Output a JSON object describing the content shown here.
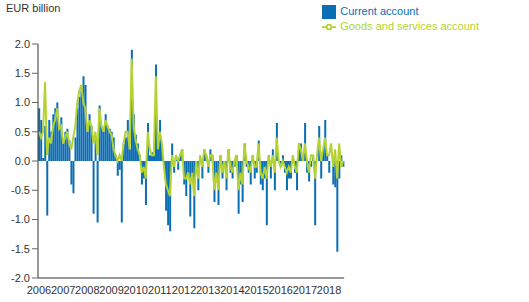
{
  "chart_data": {
    "type": "bar",
    "y_label": "EUR billion",
    "categories": [
      "2006",
      null,
      null,
      null,
      null,
      null,
      null,
      null,
      null,
      null,
      null,
      null,
      "2007",
      null,
      null,
      null,
      null,
      null,
      null,
      null,
      null,
      null,
      null,
      null,
      "2008",
      null,
      null,
      null,
      null,
      null,
      null,
      null,
      null,
      null,
      null,
      null,
      "2009",
      null,
      null,
      null,
      null,
      null,
      null,
      null,
      null,
      null,
      null,
      null,
      "2010",
      null,
      null,
      null,
      null,
      null,
      null,
      null,
      null,
      null,
      null,
      null,
      "2011",
      null,
      null,
      null,
      null,
      null,
      null,
      null,
      null,
      null,
      null,
      null,
      "2012",
      null,
      null,
      null,
      null,
      null,
      null,
      null,
      null,
      null,
      null,
      null,
      "2013",
      null,
      null,
      null,
      null,
      null,
      null,
      null,
      null,
      null,
      null,
      null,
      "2014",
      null,
      null,
      null,
      null,
      null,
      null,
      null,
      null,
      null,
      null,
      null,
      "2015",
      null,
      null,
      null,
      null,
      null,
      null,
      null,
      null,
      null,
      null,
      null,
      "2016",
      null,
      null,
      null,
      null,
      null,
      null,
      null,
      null,
      null,
      null,
      null,
      "2017",
      null,
      null,
      null,
      null,
      null,
      null,
      null,
      null,
      null,
      null,
      null,
      "2018",
      null,
      null,
      null,
      null,
      null,
      null,
      null
    ],
    "series": [
      {
        "name": "Current account",
        "type": "bar",
        "color": "#0a6eb4",
        "values": [
          0.9,
          0.7,
          0.05,
          0.6,
          -0.93,
          0.7,
          0.5,
          0.8,
          0.9,
          1.0,
          0.6,
          0.75,
          0.3,
          0.5,
          0.55,
          0.35,
          -0.4,
          -0.55,
          0.4,
          0.9,
          1.1,
          1.2,
          1.45,
          1.3,
          0.5,
          0.8,
          0.6,
          -0.9,
          0.4,
          -1.05,
          0.95,
          0.6,
          0.5,
          0.8,
          0.6,
          0.55,
          0.5,
          0.4,
          0.1,
          -0.25,
          -0.15,
          -1.05,
          0.3,
          0.4,
          0.7,
          0.2,
          1.9,
          0.8,
          0.45,
          0.3,
          0.1,
          -0.4,
          -0.3,
          -0.75,
          0.65,
          0.1,
          0.15,
          0.1,
          1.65,
          0.25,
          0.7,
          0.3,
          -0.1,
          -0.85,
          -1.1,
          -1.2,
          0.3,
          -0.2,
          0.05,
          -0.15,
          0.1,
          0.2,
          -0.4,
          -0.6,
          -0.2,
          -0.95,
          -0.3,
          -1.15,
          -0.1,
          -0.5,
          0.0,
          -0.3,
          0.2,
          0.1,
          -0.2,
          0.2,
          0.1,
          -0.7,
          -0.3,
          -0.75,
          0.1,
          -0.3,
          -0.1,
          -0.5,
          0.2,
          -0.2,
          -0.3,
          -0.1,
          0.1,
          -0.9,
          -0.4,
          -0.7,
          0.3,
          -0.1,
          -0.2,
          -0.4,
          0.1,
          -0.3,
          -0.2,
          0.35,
          -0.4,
          -0.5,
          -0.3,
          -1.1,
          0.1,
          -0.3,
          0.2,
          -0.5,
          0.65,
          0.0,
          -0.1,
          0.1,
          -0.2,
          -0.5,
          -0.3,
          -0.3,
          0.1,
          -0.2,
          -0.5,
          0.3,
          0.3,
          0.0,
          0.65,
          -0.2,
          -0.35,
          -0.1,
          0.1,
          -1.1,
          0.0,
          0.6,
          -0.3,
          0.2,
          0.7,
          0.1,
          -0.2,
          0.0,
          -0.4,
          -0.45,
          -1.55,
          -0.3,
          0.1,
          -0.1
        ]
      },
      {
        "name": "Goods and services account",
        "type": "line",
        "color": "#b4d232",
        "values": [
          0.5,
          0.4,
          0.5,
          1.35,
          0.1,
          0.4,
          0.3,
          0.6,
          0.7,
          0.9,
          0.55,
          0.6,
          0.3,
          0.4,
          0.5,
          0.3,
          0.2,
          0.4,
          0.6,
          1.0,
          1.2,
          1.3,
          1.0,
          0.9,
          0.5,
          0.7,
          0.6,
          0.3,
          0.5,
          0.1,
          0.9,
          0.6,
          0.5,
          0.7,
          0.6,
          0.5,
          0.45,
          0.2,
          0.1,
          0.0,
          0.1,
          0.0,
          0.3,
          0.5,
          0.5,
          0.2,
          1.75,
          0.6,
          0.35,
          0.2,
          0.1,
          -0.2,
          -0.1,
          -0.3,
          0.5,
          0.2,
          0.1,
          0.1,
          1.45,
          0.2,
          0.5,
          0.3,
          -0.1,
          -0.4,
          -0.5,
          -0.6,
          0.1,
          -0.1,
          0.1,
          0.0,
          0.1,
          0.2,
          -0.3,
          -0.3,
          -0.2,
          -0.4,
          -0.2,
          -0.6,
          0.0,
          -0.3,
          0.1,
          -0.1,
          0.2,
          0.1,
          -0.1,
          0.1,
          0.1,
          -0.5,
          -0.2,
          -0.5,
          0.1,
          -0.2,
          0.0,
          -0.3,
          0.2,
          -0.1,
          -0.2,
          0.0,
          0.1,
          -0.5,
          -0.2,
          -0.4,
          0.3,
          0.0,
          -0.1,
          -0.2,
          0.1,
          -0.1,
          -0.1,
          0.3,
          -0.2,
          -0.3,
          -0.1,
          -0.3,
          0.1,
          -0.1,
          0.1,
          -0.2,
          0.4,
          0.0,
          -0.1,
          0.0,
          -0.1,
          -0.2,
          -0.1,
          -0.2,
          0.1,
          -0.1,
          -0.2,
          0.3,
          0.2,
          0.0,
          0.3,
          0.0,
          -0.2,
          0.1,
          0.1,
          -0.3,
          0.1,
          0.4,
          0.0,
          0.2,
          0.4,
          0.1,
          0.1,
          0.3,
          -0.1,
          0.2,
          -0.3,
          0.3,
          -0.1,
          0.0
        ]
      }
    ],
    "ylim": [
      -2,
      2
    ],
    "yticks": [
      {
        "value": -2,
        "label": "-2.0"
      },
      -1.5,
      {
        "value": -1,
        "label": "-1.0"
      },
      -0.5,
      {
        "value": 0,
        "label": "0.0"
      },
      0.5,
      {
        "value": 1,
        "label": "1.0"
      },
      1.5,
      {
        "value": 2,
        "label": "2.0"
      }
    ],
    "grid": false,
    "legend": "top-right"
  }
}
